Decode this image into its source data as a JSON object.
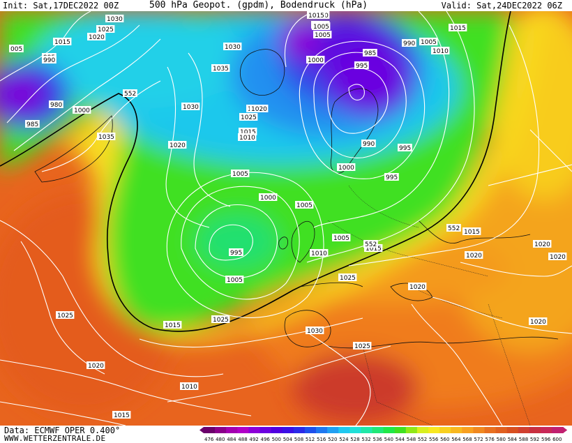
{
  "header": {
    "init": "Init: Sat,17DEC2022 00Z",
    "title": "500 hPa Geopot. (gpdm), Bodendruck (hPa)",
    "valid": "Valid: Sat,24DEC2022 06Z"
  },
  "footer": {
    "data_source": "Data: ECMWF OPER 0.400°",
    "site": "WWW.WETTERZENTRALE.DE"
  },
  "map": {
    "pressure_labels": [
      "1035",
      "1030",
      "1025",
      "1020",
      "1015",
      "005",
      "995",
      "990",
      "980",
      "985",
      "1000",
      "552",
      "1030",
      "1035",
      "1030",
      "1020",
      "1025",
      "1025",
      "1020",
      "1015",
      "1010",
      "1005",
      "1000",
      "1005",
      "995",
      "1005",
      "1010",
      "1015",
      "1015",
      "1010",
      "1005",
      "1000",
      "995",
      "990",
      "985",
      "990",
      "1000",
      "1005",
      "995",
      "995",
      "1005",
      "1015",
      "1010",
      "1015",
      "1020",
      "1020",
      "1020",
      "1020",
      "1025",
      "1025",
      "1030",
      "1035",
      "1025",
      "1020",
      "1020",
      "1025",
      "1015",
      "552",
      "552",
      "1005",
      "1010",
      "1015",
      "1010",
      "1015",
      "1020",
      "1020"
    ]
  },
  "colorbar": {
    "ticks": [
      "476",
      "480",
      "484",
      "488",
      "492",
      "496",
      "500",
      "504",
      "508",
      "512",
      "516",
      "520",
      "524",
      "528",
      "532",
      "536",
      "540",
      "544",
      "548",
      "552",
      "556",
      "560",
      "564",
      "568",
      "572",
      "576",
      "580",
      "584",
      "588",
      "592",
      "596",
      "600"
    ],
    "colors": [
      "#6b006b",
      "#8a008a",
      "#a300b0",
      "#b000c8",
      "#8c00d8",
      "#6a00e0",
      "#5000e0",
      "#3a10e6",
      "#2a2ae8",
      "#1e50ec",
      "#1e78f0",
      "#20a0f2",
      "#20c8f0",
      "#20e0d8",
      "#20e8a8",
      "#20e878",
      "#20e848",
      "#40e020",
      "#90e818",
      "#d8f020",
      "#f8e820",
      "#f8d020",
      "#f8b820",
      "#f8a020",
      "#f08820",
      "#e87020",
      "#e06020",
      "#d85020",
      "#d04030",
      "#c83040",
      "#c82858",
      "#c02070"
    ]
  }
}
